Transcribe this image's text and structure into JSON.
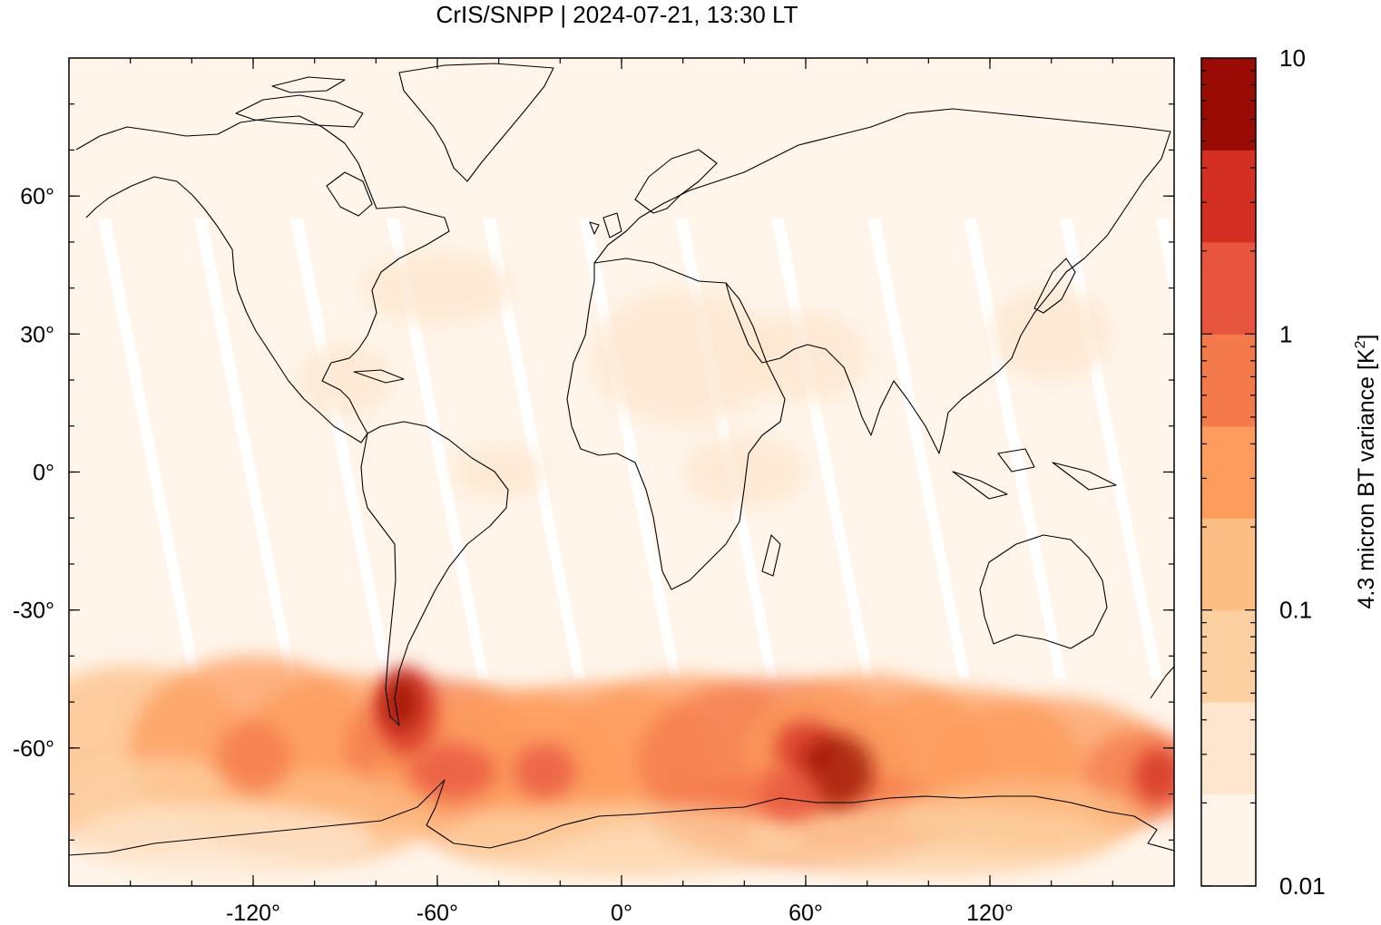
{
  "chart_data": {
    "type": "heatmap",
    "title": "CrIS/SNPP | 2024-07-21, 13:30 LT",
    "xlabel": "",
    "ylabel": "",
    "projection": "equirectangular map, coastlines",
    "xlim": [
      -180,
      180
    ],
    "ylim": [
      -90,
      90
    ],
    "x_ticks": [
      {
        "value": -120,
        "label": "-120°"
      },
      {
        "value": -60,
        "label": "-60°"
      },
      {
        "value": 0,
        "label": "0°"
      },
      {
        "value": 60,
        "label": "60°"
      },
      {
        "value": 120,
        "label": "120°"
      }
    ],
    "y_ticks": [
      {
        "value": 60,
        "label": "60°"
      },
      {
        "value": 30,
        "label": "30°"
      },
      {
        "value": 0,
        "label": "0°"
      },
      {
        "value": -30,
        "label": "-30°"
      },
      {
        "value": -60,
        "label": "-60°"
      }
    ],
    "colorbar": {
      "label": "4.3 micron BT variance",
      "units": "[K",
      "units_sup": "2",
      "units_end": "]",
      "scale": "log",
      "range": [
        0.01,
        10
      ],
      "labels": [
        {
          "value": 10,
          "label": "10"
        },
        {
          "value": 1,
          "label": "1"
        },
        {
          "value": 0.1,
          "label": "0.1"
        },
        {
          "value": 0.01,
          "label": "0.01"
        }
      ],
      "colors": [
        "#fff5eb",
        "#fee6ce",
        "#fdd0a2",
        "#fdbe85",
        "#fd9b5c",
        "#f4794b",
        "#e8553f",
        "#d32f23",
        "#9a0b06"
      ]
    },
    "features": [
      {
        "name": "background",
        "value": 0.01
      },
      {
        "name": "orbit gaps",
        "value": null
      },
      {
        "name": "scattered mid-latitude patches",
        "range": [
          0.02,
          0.05
        ]
      },
      {
        "name": "Southern Ocean band 40°S–80°S",
        "range": [
          0.05,
          3
        ]
      },
      {
        "name": "Southern Andes / Patagonia maximum",
        "value": 3
      },
      {
        "name": "southern Indian Ocean maximum",
        "value": 3
      }
    ]
  }
}
